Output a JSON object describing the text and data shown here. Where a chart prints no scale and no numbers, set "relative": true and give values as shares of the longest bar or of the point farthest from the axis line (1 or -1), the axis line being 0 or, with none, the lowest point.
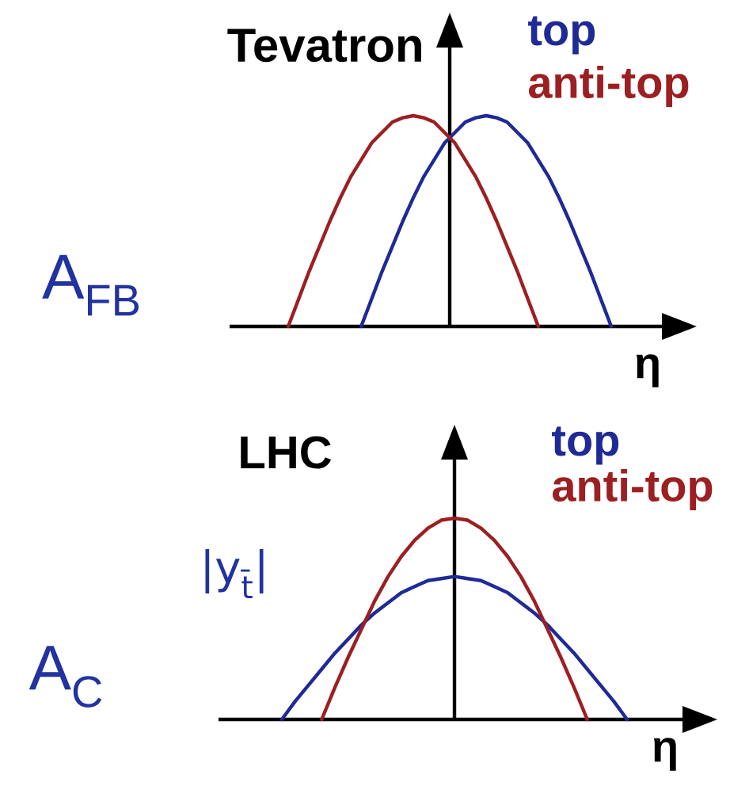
{
  "chart_data": [
    {
      "type": "line",
      "title": "Tevatron",
      "xlabel": "η",
      "ylabel": "A$_{FB}$",
      "relative": true,
      "legend": "top right",
      "categories": [
        null,
        null,
        null,
        null,
        null,
        null,
        null,
        null,
        null,
        null,
        null,
        null,
        null,
        null,
        null,
        null,
        null,
        null,
        null,
        null,
        null,
        null,
        null,
        null,
        null,
        null,
        null,
        null,
        null,
        null,
        null,
        null
      ],
      "series": [
        {
          "name": "top",
          "color": "#1f2a96",
          "values": [
            null,
            null,
            null,
            null,
            null,
            null,
            null,
            0,
            0.13,
            0.26,
            0.38,
            0.5,
            0.61,
            0.71,
            0.79,
            0.87,
            0.92,
            0.97,
            0.99,
            1,
            0.99,
            0.97,
            0.92,
            0.87,
            0.79,
            0.71,
            0.61,
            0.5,
            0.38,
            0.26,
            0.13,
            0
          ]
        },
        {
          "name": "anti-top",
          "color": "#9c1f22",
          "values": [
            0,
            0.13,
            0.26,
            0.38,
            0.5,
            0.61,
            0.71,
            0.79,
            0.87,
            0.92,
            0.97,
            0.99,
            1,
            0.99,
            0.97,
            0.92,
            0.87,
            0.79,
            0.71,
            0.61,
            0.5,
            0.38,
            0.26,
            0.13,
            0,
            null,
            null,
            null,
            null,
            null,
            null,
            null
          ]
        }
      ]
    },
    {
      "type": "line",
      "title": "LHC",
      "xlabel": "η",
      "ylabel": "A$_{C}$",
      "annotations": [
        "|y$_{t̄}$|"
      ],
      "relative": true,
      "legend": "top right",
      "categories": [
        null,
        null,
        null,
        null,
        null,
        null,
        null,
        null,
        null,
        null,
        null,
        null,
        null,
        null,
        null,
        null,
        null,
        null,
        null,
        null,
        null,
        null,
        null,
        null,
        null,
        null,
        null
      ],
      "series": [
        {
          "name": "top",
          "color": "#1f2a96",
          "values": [
            0,
            0.09,
            0.17,
            0.25,
            0.33,
            0.4,
            0.47,
            0.53,
            0.58,
            0.63,
            0.66,
            0.69,
            0.7,
            0.71,
            0.7,
            0.69,
            0.66,
            0.63,
            0.58,
            0.53,
            0.47,
            0.4,
            0.33,
            0.25,
            0.17,
            0.09,
            0
          ]
        },
        {
          "name": "anti-top",
          "color": "#9c1f22",
          "values": [
            null,
            null,
            null,
            0,
            0.16,
            0.31,
            0.45,
            0.59,
            0.71,
            0.81,
            0.89,
            0.95,
            0.99,
            1,
            0.99,
            0.95,
            0.89,
            0.81,
            0.71,
            0.59,
            0.45,
            0.31,
            0.16,
            0,
            null,
            null,
            null
          ]
        }
      ]
    }
  ]
}
